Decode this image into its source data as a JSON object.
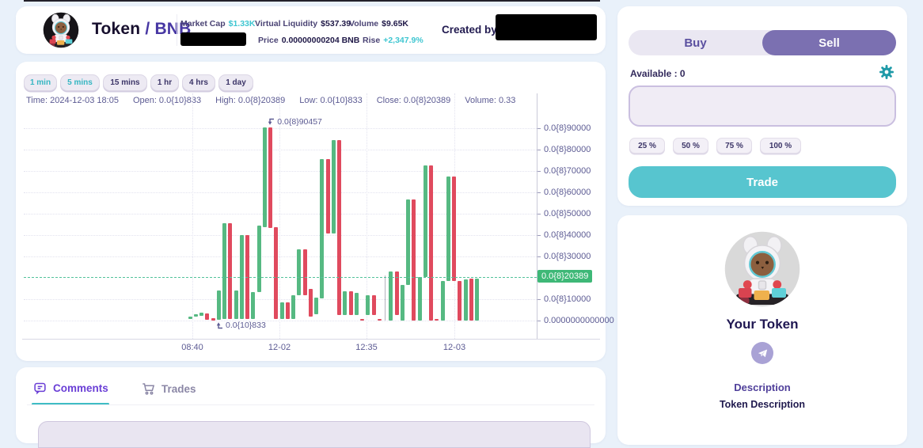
{
  "header": {
    "token_name": "Token",
    "pair_separator": "/",
    "pair": "BNB",
    "stats": [
      {
        "label": "Market Cap",
        "value": "$1.33K",
        "teal": true
      },
      {
        "label": "Virtual Liquidity",
        "value": "$537.39",
        "teal": false
      },
      {
        "label": "Volume",
        "value": "$9.65K",
        "teal": false
      },
      {
        "label": "Price",
        "value": "0.00000000204 BNB",
        "teal": false
      },
      {
        "label": "Rise",
        "value": "+2,347.9%",
        "teal": true
      }
    ],
    "created_by_label": "Created by"
  },
  "chart": {
    "intervals": [
      {
        "label": "1 min"
      },
      {
        "label": "5 mins"
      },
      {
        "label": "15 mins"
      },
      {
        "label": "1 hr"
      },
      {
        "label": "4 hrs"
      },
      {
        "label": "1 day"
      }
    ],
    "info": [
      {
        "label": "Time:",
        "value": "2024-12-03 18:05"
      },
      {
        "label": "Open:",
        "value": "0.0{10}833"
      },
      {
        "label": "High:",
        "value": "0.0{8}20389"
      },
      {
        "label": "Low:",
        "value": "0.0{10}833"
      },
      {
        "label": "Close:",
        "value": "0.0{8}20389"
      },
      {
        "label": "Volume:",
        "value": "0.33"
      }
    ]
  },
  "chart_data": {
    "type": "candlestick",
    "unit": "BNB, values are trailing digits in 1e-13 BNB (axis notation 0.0{8}NNNNN)",
    "x_ticks": [
      "08:40",
      "12-02",
      "12:35",
      "12-03"
    ],
    "y_ticks": [
      {
        "value": 90000,
        "label": "0.0{8}90000"
      },
      {
        "value": 80000,
        "label": "0.0{8}80000"
      },
      {
        "value": 70000,
        "label": "0.0{8}70000"
      },
      {
        "value": 60000,
        "label": "0.0{8}60000"
      },
      {
        "value": 50000,
        "label": "0.0{8}50000"
      },
      {
        "value": 40000,
        "label": "0.0{8}40000"
      },
      {
        "value": 30000,
        "label": "0.0{8}30000"
      },
      {
        "value": 10000,
        "label": "0.0{8}10000"
      },
      {
        "value": 0,
        "label": "0.0000000000000"
      }
    ],
    "current_price": {
      "value": 20389,
      "label": "0.0{8}20389"
    },
    "high_marker": {
      "value": 90457,
      "label": "0.0{8}90457",
      "candle_index": 13
    },
    "low_marker": {
      "value": 833,
      "label": "0.0{10}833",
      "candle_index": 4
    },
    "candles": [
      [
        "g",
        1800,
        700
      ],
      [
        "g",
        3000,
        1850
      ],
      [
        "g",
        3700,
        2200
      ],
      [
        "r",
        3300,
        400
      ],
      [
        "r",
        1100,
        0
      ],
      [
        "g",
        14000,
        400
      ],
      [
        "g",
        45600,
        700
      ],
      [
        "r",
        45600,
        700
      ],
      [
        "g",
        14000,
        700
      ],
      [
        "g",
        40000,
        700
      ],
      [
        "r",
        40000,
        700
      ],
      [
        "g",
        13300,
        700
      ],
      [
        "g",
        44400,
        13300
      ],
      [
        "g",
        90457,
        43700
      ],
      [
        "r",
        90457,
        43300
      ],
      [
        "r",
        43700,
        700
      ],
      [
        "g",
        8500,
        700
      ],
      [
        "r",
        8500,
        700
      ],
      [
        "g",
        11800,
        700
      ],
      [
        "g",
        33300,
        11800
      ],
      [
        "r",
        33300,
        11800
      ],
      [
        "r",
        14800,
        1800
      ],
      [
        "g",
        10700,
        2900
      ],
      [
        "g",
        75500,
        10400
      ],
      [
        "r",
        75500,
        40700
      ],
      [
        "g",
        84400,
        40700
      ],
      [
        "r",
        84400,
        2600
      ],
      [
        "g",
        13700,
        2600
      ],
      [
        "r",
        13700,
        2600
      ],
      [
        "g",
        13000,
        2600
      ],
      [
        "r",
        700,
        200
      ],
      [
        "g",
        11800,
        2600
      ],
      [
        "r",
        11800,
        2600
      ],
      [
        "r",
        700,
        200
      ],
      [
        "w",
        21000,
        0
      ],
      [
        "g",
        22900,
        0
      ],
      [
        "r",
        22900,
        2600
      ],
      [
        "g",
        16700,
        0
      ],
      [
        "g",
        56700,
        16700
      ],
      [
        "r",
        56700,
        0
      ],
      [
        "g",
        20400,
        0
      ],
      [
        "g",
        72600,
        20400
      ],
      [
        "r",
        72600,
        0
      ],
      [
        "r",
        700,
        200
      ],
      [
        "g",
        18500,
        0
      ],
      [
        "g",
        67400,
        18500
      ],
      [
        "r",
        67400,
        18500
      ],
      [
        "r",
        18500,
        0
      ],
      [
        "g",
        19300,
        0
      ],
      [
        "r",
        19600,
        0
      ],
      [
        "g",
        19600,
        0
      ]
    ],
    "colors": {
      "up": "#56b982",
      "down": "#e04a5e",
      "wick": "#b4b3bd",
      "price_line": "#52c29b",
      "price_label_bg": "#3eb877"
    }
  },
  "comments_panel": {
    "tabs": [
      {
        "label": "Comments"
      },
      {
        "label": "Trades"
      }
    ]
  },
  "trade_panel": {
    "buy_label": "Buy",
    "sell_label": "Sell",
    "available_label": "Available : 0",
    "input_value": "",
    "percent_options": [
      "25 %",
      "50 %",
      "75 %",
      "100 %"
    ],
    "trade_label": "Trade"
  },
  "token_panel": {
    "name": "Your Token",
    "description_title": "Description",
    "description": "Token Description"
  }
}
